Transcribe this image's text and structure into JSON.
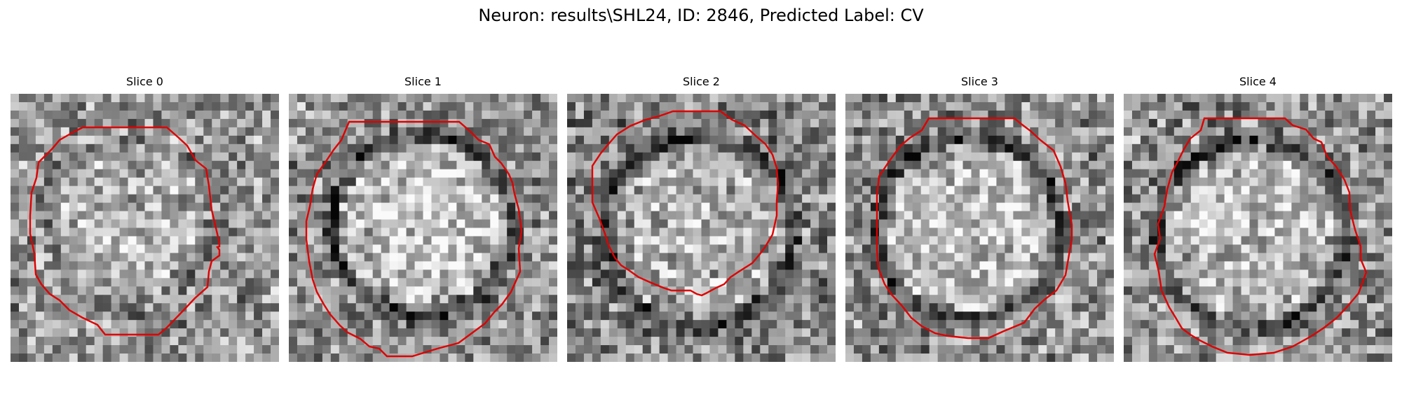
{
  "figure": {
    "title": "Neuron: results\\SHL24, ID: 2846, Predicted Label: CV"
  },
  "panels": [
    {
      "title": "Slice 0",
      "image_description": "grayscale noisy microscopy patch with faint round cell",
      "contour_color": "#e00000"
    },
    {
      "title": "Slice 1",
      "image_description": "grayscale noisy microscopy patch with bright round cell and dark membrane ring",
      "contour_color": "#e00000"
    },
    {
      "title": "Slice 2",
      "image_description": "grayscale noisy microscopy patch with bright round cell and dark membrane ring",
      "contour_color": "#e00000"
    },
    {
      "title": "Slice 3",
      "image_description": "grayscale noisy microscopy patch with bright round cell and dark membrane ring",
      "contour_color": "#e00000"
    },
    {
      "title": "Slice 4",
      "image_description": "grayscale noisy microscopy patch with bright round cell and dark membrane ring",
      "contour_color": "#e00000"
    }
  ],
  "colors": {
    "background": "#ffffff",
    "contour": "#e00000"
  }
}
